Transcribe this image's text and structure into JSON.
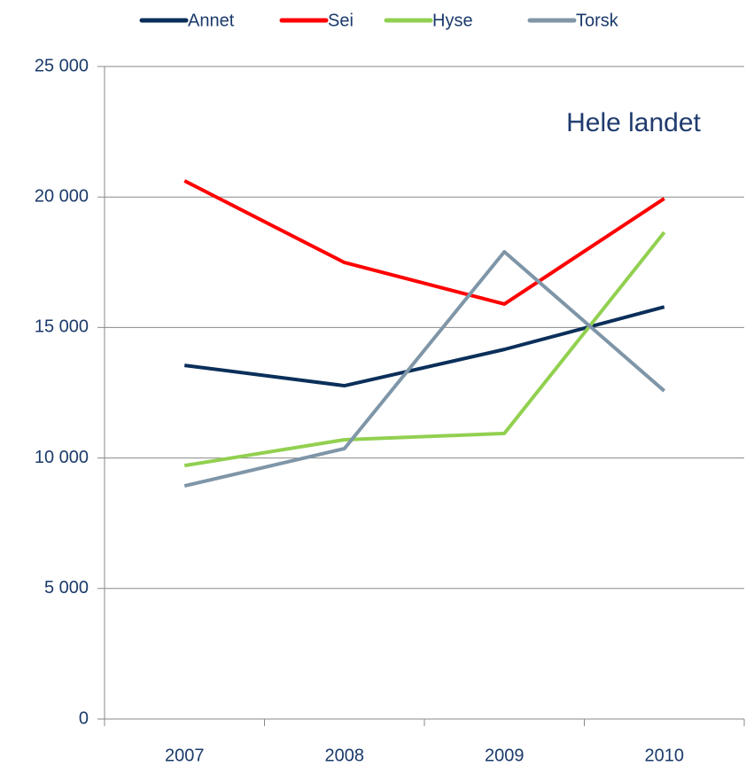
{
  "chart_data": {
    "type": "line",
    "annotation": "Hele landet",
    "categories": [
      "2007",
      "2008",
      "2009",
      "2010"
    ],
    "series": [
      {
        "name": "Annet",
        "color": "#0b2f5a",
        "values": [
          13550,
          12770,
          14160,
          15790
        ]
      },
      {
        "name": "Sei",
        "color": "#ff0000",
        "values": [
          20620,
          17490,
          15900,
          19940
        ]
      },
      {
        "name": "Hyse",
        "color": "#92d050",
        "values": [
          9710,
          10700,
          10940,
          18650
        ]
      },
      {
        "name": "Torsk",
        "color": "#7f96a8",
        "values": [
          8930,
          10360,
          17900,
          12570
        ]
      }
    ],
    "ylim": [
      0,
      25000
    ],
    "yticks": [
      0,
      {
        "value": 5000,
        "label": "5 000"
      },
      {
        "value": 10000,
        "label": "10 000"
      },
      {
        "value": 15000,
        "label": "15 000"
      },
      {
        "value": 20000,
        "label": "20 000"
      },
      {
        "value": 25000,
        "label": "25 000"
      }
    ],
    "grid": true,
    "legend": "top"
  }
}
